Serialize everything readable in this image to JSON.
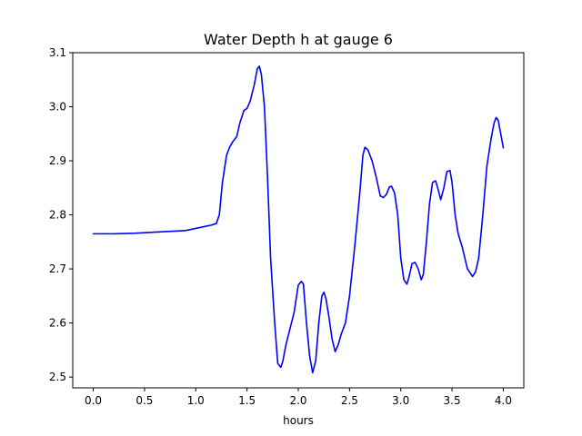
{
  "chart_data": {
    "type": "line",
    "title": "Water Depth h at gauge 6",
    "xlabel": "hours",
    "ylabel": "",
    "xlim": [
      -0.2,
      4.2
    ],
    "ylim": [
      2.48,
      3.1
    ],
    "grid": false,
    "legend": "none",
    "x_ticks": [
      "0.0",
      "0.5",
      "1.0",
      "1.5",
      "2.0",
      "2.5",
      "3.0",
      "3.5",
      "4.0"
    ],
    "y_ticks": [
      "2.5",
      "2.6",
      "2.7",
      "2.8",
      "2.9",
      "3.0",
      "3.1"
    ],
    "colors": {
      "line": "#0000ff",
      "axis": "#000000",
      "background": "#ffffff"
    },
    "series": [
      {
        "x": [
          0.0,
          0.2,
          0.4,
          0.5,
          0.6,
          0.8,
          0.9,
          1.0,
          1.1,
          1.15,
          1.2,
          1.23,
          1.26,
          1.3,
          1.33,
          1.36,
          1.4,
          1.43,
          1.47,
          1.5,
          1.53,
          1.57,
          1.6,
          1.62,
          1.64,
          1.67,
          1.7,
          1.73,
          1.77,
          1.8,
          1.83,
          1.85,
          1.88,
          1.92,
          1.96,
          2.0,
          2.03,
          2.05,
          2.08,
          2.11,
          2.14,
          2.17,
          2.2,
          2.23,
          2.25,
          2.27,
          2.3,
          2.33,
          2.36,
          2.39,
          2.42,
          2.46,
          2.5,
          2.55,
          2.6,
          2.63,
          2.65,
          2.68,
          2.72,
          2.76,
          2.8,
          2.83,
          2.86,
          2.89,
          2.91,
          2.94,
          2.97,
          3.0,
          3.03,
          3.06,
          3.08,
          3.11,
          3.14,
          3.17,
          3.2,
          3.22,
          3.25,
          3.28,
          3.31,
          3.34,
          3.36,
          3.39,
          3.42,
          3.45,
          3.48,
          3.5,
          3.53,
          3.56,
          3.6,
          3.65,
          3.7,
          3.73,
          3.76,
          3.8,
          3.84,
          3.88,
          3.91,
          3.93,
          3.95,
          3.98,
          4.0
        ],
        "y": [
          2.765,
          2.765,
          2.766,
          2.767,
          2.768,
          2.77,
          2.771,
          2.775,
          2.779,
          2.781,
          2.784,
          2.8,
          2.86,
          2.91,
          2.925,
          2.935,
          2.945,
          2.97,
          2.993,
          2.997,
          3.01,
          3.04,
          3.07,
          3.075,
          3.06,
          3.0,
          2.87,
          2.72,
          2.6,
          2.525,
          2.518,
          2.53,
          2.56,
          2.59,
          2.62,
          2.67,
          2.677,
          2.672,
          2.6,
          2.54,
          2.508,
          2.53,
          2.6,
          2.65,
          2.657,
          2.645,
          2.61,
          2.57,
          2.547,
          2.56,
          2.58,
          2.6,
          2.65,
          2.74,
          2.84,
          2.91,
          2.925,
          2.92,
          2.9,
          2.87,
          2.835,
          2.832,
          2.838,
          2.852,
          2.853,
          2.84,
          2.8,
          2.72,
          2.68,
          2.672,
          2.685,
          2.71,
          2.712,
          2.7,
          2.68,
          2.69,
          2.75,
          2.82,
          2.86,
          2.863,
          2.85,
          2.828,
          2.85,
          2.88,
          2.882,
          2.86,
          2.8,
          2.765,
          2.74,
          2.7,
          2.686,
          2.695,
          2.72,
          2.8,
          2.89,
          2.94,
          2.97,
          2.98,
          2.975,
          2.945,
          2.924
        ]
      }
    ]
  }
}
